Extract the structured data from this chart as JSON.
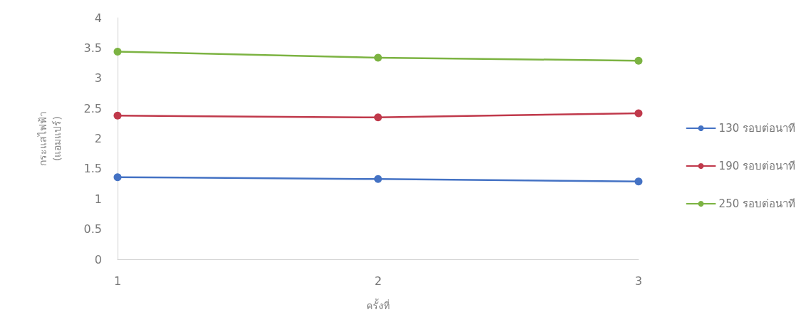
{
  "chart_data": {
    "type": "line",
    "xlabel": "ครั้งที่",
    "ylabel": "กระแสไฟฟ้า\n(แอมแปร์)",
    "categories": [
      "1",
      "2",
      "3"
    ],
    "series": [
      {
        "name": "130 รอบต่อนาที",
        "color": "#4472c4",
        "values": [
          1.36,
          1.33,
          1.29
        ]
      },
      {
        "name": "190 รอบต่อนาที",
        "color": "#c0394b",
        "values": [
          2.38,
          2.35,
          2.42
        ]
      },
      {
        "name": "250 รอบต่อนาที",
        "color": "#7cb342",
        "values": [
          3.44,
          3.34,
          3.29
        ]
      }
    ],
    "ylim": [
      0,
      4
    ],
    "yticks": [
      0,
      0.5,
      1,
      1.5,
      2,
      2.5,
      3,
      3.5,
      4
    ],
    "grid": false,
    "legend": "right",
    "marker": "circle",
    "line_style": "solid"
  }
}
